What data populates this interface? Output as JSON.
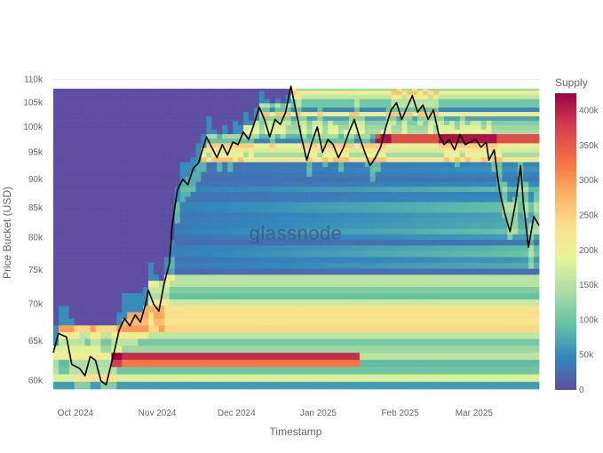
{
  "chart_data": {
    "type": "heatmap",
    "title": "",
    "watermark": "glassnode",
    "xlabel": "Timestamp",
    "ylabel": "Price Bucket (USD)",
    "x_ticks": [
      "Oct 2024",
      "Nov 2024",
      "Dec 2024",
      "Jan 2025",
      "Feb 2025",
      "Mar 2025"
    ],
    "x_range": [
      "2024-09-28",
      "2025-03-31"
    ],
    "y_scale": "log",
    "y_ticks": [
      {
        "value": 60000,
        "label": "60k"
      },
      {
        "value": 65000,
        "label": "65k"
      },
      {
        "value": 70000,
        "label": "70k"
      },
      {
        "value": 75000,
        "label": "75k"
      },
      {
        "value": 80000,
        "label": "80k"
      },
      {
        "value": 85000,
        "label": "85k"
      },
      {
        "value": 90000,
        "label": "90k"
      },
      {
        "value": 95000,
        "label": "95k"
      },
      {
        "value": 100000,
        "label": "100k"
      },
      {
        "value": 105000,
        "label": "105k"
      },
      {
        "value": 110000,
        "label": "110k"
      }
    ],
    "y_range": [
      59000,
      110500
    ],
    "colorbar": {
      "title": "Supply",
      "range": [
        0,
        425000
      ],
      "ticks": [
        {
          "value": 0,
          "label": "0"
        },
        {
          "value": 50000,
          "label": "50k"
        },
        {
          "value": 100000,
          "label": "100k"
        },
        {
          "value": 150000,
          "label": "150k"
        },
        {
          "value": 200000,
          "label": "200k"
        },
        {
          "value": 250000,
          "label": "250k"
        },
        {
          "value": 300000,
          "label": "300k"
        },
        {
          "value": 350000,
          "label": "350k"
        },
        {
          "value": 400000,
          "label": "400k"
        }
      ],
      "colors": [
        "#5e4fa2",
        "#3288bd",
        "#66c2a5",
        "#abdda4",
        "#e6f598",
        "#fee08b",
        "#fdae61",
        "#f46d43",
        "#d53e4f",
        "#9e0142"
      ]
    },
    "price_series": {
      "name": "Price",
      "color": "#000000",
      "points": [
        [
          "2024-09-28",
          63500
        ],
        [
          "2024-09-30",
          66000
        ],
        [
          "2024-10-03",
          65500
        ],
        [
          "2024-10-05",
          62000
        ],
        [
          "2024-10-08",
          61500
        ],
        [
          "2024-10-10",
          60600
        ],
        [
          "2024-10-12",
          63000
        ],
        [
          "2024-10-14",
          62500
        ],
        [
          "2024-10-16",
          60000
        ],
        [
          "2024-10-18",
          59500
        ],
        [
          "2024-10-21",
          63500
        ],
        [
          "2024-10-23",
          66500
        ],
        [
          "2024-10-25",
          68000
        ],
        [
          "2024-10-27",
          67000
        ],
        [
          "2024-10-29",
          68500
        ],
        [
          "2024-10-31",
          67500
        ],
        [
          "2024-11-02",
          70000
        ],
        [
          "2024-11-03",
          72000
        ],
        [
          "2024-11-05",
          70000
        ],
        [
          "2024-11-07",
          69000
        ],
        [
          "2024-11-09",
          73000
        ],
        [
          "2024-11-11",
          76000
        ],
        [
          "2024-11-12",
          82000
        ],
        [
          "2024-11-14",
          88000
        ],
        [
          "2024-11-16",
          90000
        ],
        [
          "2024-11-18",
          89000
        ],
        [
          "2024-11-20",
          92000
        ],
        [
          "2024-11-22",
          93000
        ],
        [
          "2024-11-25",
          98000
        ],
        [
          "2024-11-27",
          96000
        ],
        [
          "2024-11-29",
          94000
        ],
        [
          "2024-12-01",
          96500
        ],
        [
          "2024-12-03",
          94500
        ],
        [
          "2024-12-05",
          97000
        ],
        [
          "2024-12-07",
          96500
        ],
        [
          "2024-12-09",
          99000
        ],
        [
          "2024-12-11",
          97500
        ],
        [
          "2024-12-13",
          100500
        ],
        [
          "2024-12-15",
          104000
        ],
        [
          "2024-12-17",
          101500
        ],
        [
          "2024-12-19",
          98000
        ],
        [
          "2024-12-21",
          101500
        ],
        [
          "2024-12-23",
          100500
        ],
        [
          "2024-12-25",
          103000
        ],
        [
          "2024-12-27",
          108500
        ],
        [
          "2024-12-29",
          103000
        ],
        [
          "2024-12-31",
          98000
        ],
        [
          "2025-01-02",
          93500
        ],
        [
          "2025-01-04",
          97000
        ],
        [
          "2025-01-06",
          100000
        ],
        [
          "2025-01-08",
          95000
        ],
        [
          "2025-01-10",
          97500
        ],
        [
          "2025-01-12",
          96500
        ],
        [
          "2025-01-14",
          94000
        ],
        [
          "2025-01-16",
          96000
        ],
        [
          "2025-01-18",
          99000
        ],
        [
          "2025-01-20",
          101500
        ],
        [
          "2025-01-22",
          98000
        ],
        [
          "2025-01-24",
          95000
        ],
        [
          "2025-01-26",
          92500
        ],
        [
          "2025-01-28",
          94000
        ],
        [
          "2025-01-30",
          96000
        ],
        [
          "2025-02-01",
          100000
        ],
        [
          "2025-02-03",
          103500
        ],
        [
          "2025-02-05",
          105000
        ],
        [
          "2025-02-07",
          101500
        ],
        [
          "2025-02-09",
          104000
        ],
        [
          "2025-02-11",
          106500
        ],
        [
          "2025-02-13",
          103000
        ],
        [
          "2025-02-15",
          104500
        ],
        [
          "2025-02-17",
          101500
        ],
        [
          "2025-02-19",
          103500
        ],
        [
          "2025-02-21",
          98500
        ],
        [
          "2025-02-23",
          96500
        ],
        [
          "2025-02-25",
          97500
        ],
        [
          "2025-02-27",
          95500
        ],
        [
          "2025-03-01",
          98500
        ],
        [
          "2025-03-03",
          96500
        ],
        [
          "2025-03-05",
          97000
        ],
        [
          "2025-03-07",
          97500
        ],
        [
          "2025-03-09",
          96000
        ],
        [
          "2025-03-11",
          97000
        ],
        [
          "2025-03-12",
          93500
        ],
        [
          "2025-03-14",
          95500
        ],
        [
          "2025-03-16",
          88000
        ],
        [
          "2025-03-18",
          84000
        ],
        [
          "2025-03-20",
          81000
        ],
        [
          "2025-03-22",
          85500
        ],
        [
          "2025-03-24",
          92500
        ],
        [
          "2025-03-25",
          86000
        ],
        [
          "2025-03-27",
          78500
        ],
        [
          "2025-03-29",
          83500
        ],
        [
          "2025-03-31",
          82000
        ]
      ]
    }
  }
}
